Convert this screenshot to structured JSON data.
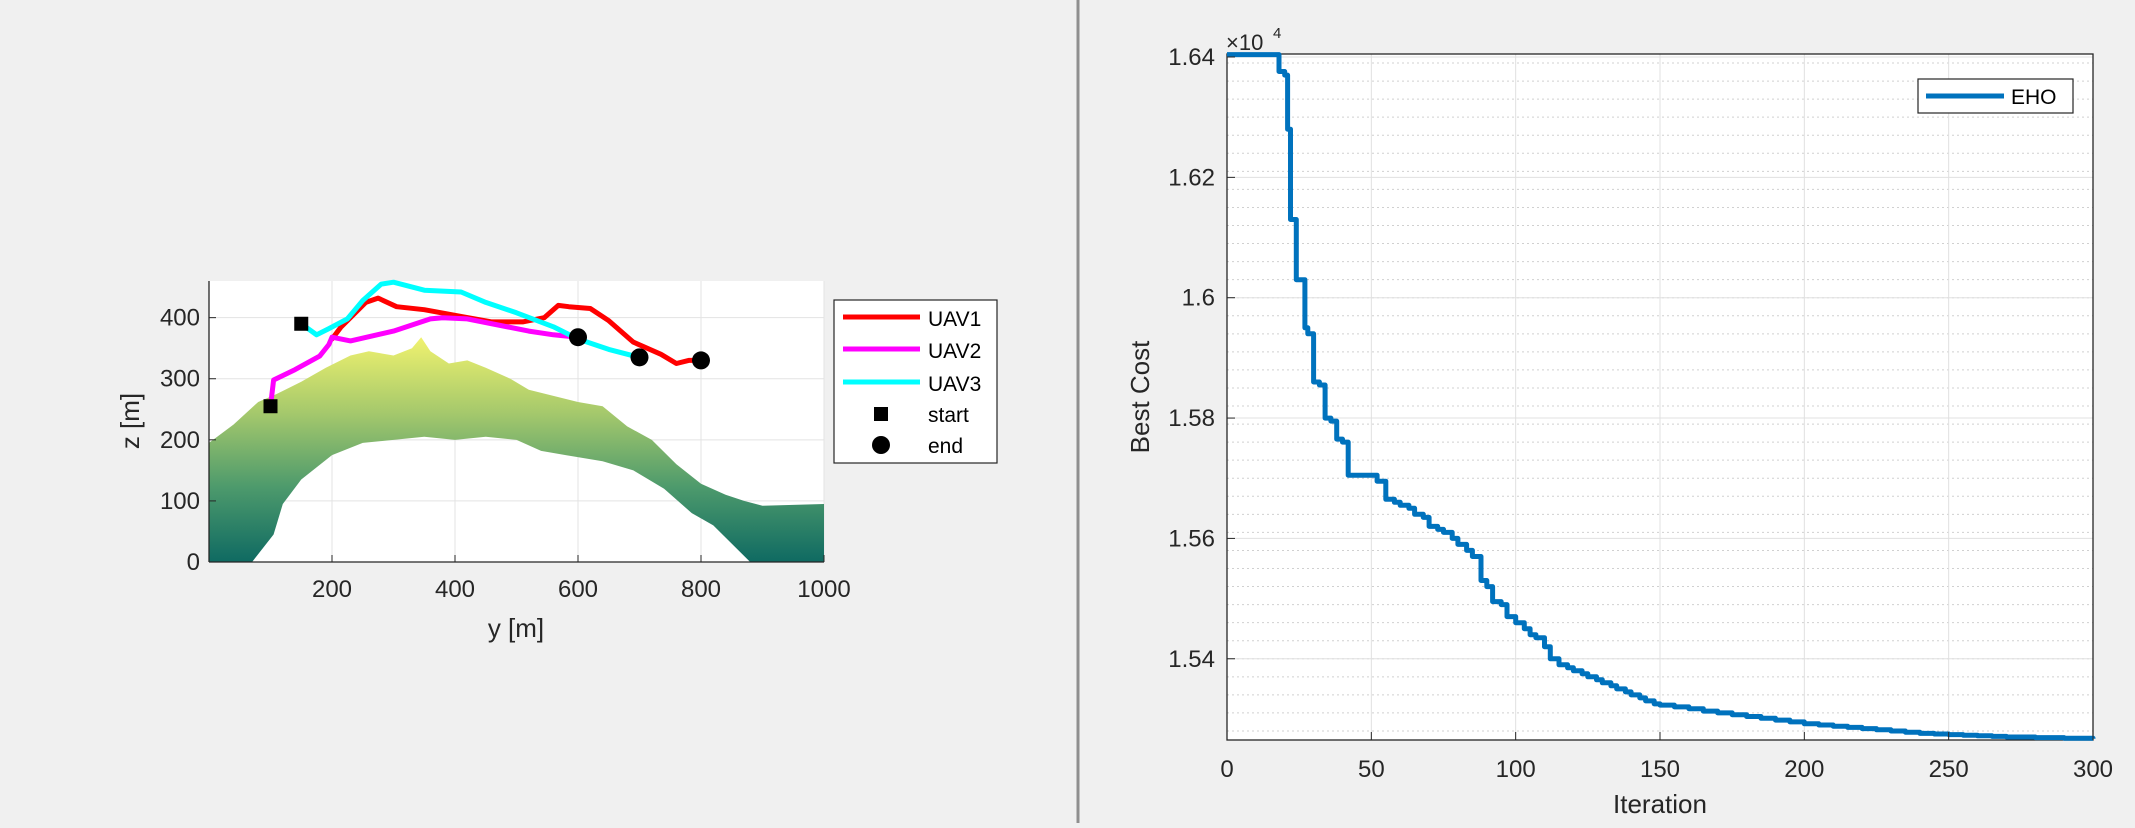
{
  "chart_data": [
    {
      "type": "line",
      "xlabel": "y [m]",
      "ylabel": "z [m]",
      "xlim": [
        0,
        1000
      ],
      "ylim": [
        0,
        460
      ],
      "xticks": [
        200,
        400,
        600,
        800,
        1000
      ],
      "yticks": [
        0,
        100,
        200,
        300,
        400
      ],
      "grid": true,
      "legend_position": "outside-right",
      "legend": [
        "UAV1",
        "UAV2",
        "UAV3",
        "start",
        "end"
      ],
      "series": [
        {
          "name": "UAV1",
          "color": "#ff0000",
          "x": [
            200,
            215,
            235,
            255,
            275,
            305,
            350,
            410,
            460,
            510,
            545,
            568,
            585,
            620,
            650,
            690,
            735,
            760,
            780,
            800
          ],
          "y": [
            365,
            385,
            405,
            425,
            432,
            418,
            413,
            402,
            393,
            393,
            400,
            420,
            418,
            415,
            395,
            360,
            340,
            325,
            330,
            330
          ]
        },
        {
          "name": "UAV2",
          "color": "#ff00ff",
          "x": [
            100,
            105,
            140,
            180,
            195,
            200,
            230,
            300,
            360,
            380,
            420,
            470,
            520,
            560,
            600
          ],
          "y": [
            255,
            298,
            315,
            337,
            356,
            368,
            362,
            378,
            398,
            400,
            398,
            388,
            378,
            372,
            368
          ]
        },
        {
          "name": "UAV3",
          "color": "#00ffff",
          "x": [
            150,
            175,
            195,
            225,
            250,
            280,
            300,
            350,
            410,
            450,
            500,
            560,
            600,
            650,
            700
          ],
          "y": [
            390,
            372,
            382,
            398,
            428,
            455,
            458,
            445,
            442,
            425,
            408,
            385,
            365,
            348,
            335
          ]
        }
      ],
      "start_points": {
        "x": [
          150,
          100
        ],
        "y": [
          390,
          255
        ]
      },
      "end_points": {
        "x": [
          600,
          700,
          800
        ],
        "y": [
          368,
          335,
          330
        ]
      },
      "terrain": {
        "colormap": [
          "#0f6a62",
          "#4d9a6c",
          "#a6c96c",
          "#f0f26e"
        ]
      }
    },
    {
      "type": "line",
      "xlabel": "Iteration",
      "ylabel": "Best Cost",
      "exponent_label": "×10",
      "exponent": "4",
      "xlim": [
        0,
        300
      ],
      "ylim": [
        1.5265,
        1.6405
      ],
      "xticks": [
        "0",
        "50",
        "100",
        "150",
        "200",
        "250",
        "300"
      ],
      "yticks": [
        "1.54",
        "1.56",
        "1.58",
        "1.6",
        "1.62",
        "1.64"
      ],
      "grid": true,
      "minor_grid": true,
      "legend_position": "top-right",
      "series": [
        {
          "name": "EHO",
          "color": "#0072bd",
          "x": [
            0,
            16,
            18,
            20,
            21,
            22,
            24,
            25,
            27,
            28,
            30,
            32,
            34,
            36,
            38,
            40,
            42,
            44,
            45,
            48,
            50,
            52,
            55,
            58,
            60,
            63,
            65,
            68,
            70,
            73,
            75,
            78,
            80,
            83,
            85,
            88,
            90,
            92,
            95,
            97,
            100,
            103,
            105,
            107,
            110,
            112,
            115,
            118,
            120,
            123,
            125,
            128,
            130,
            133,
            135,
            138,
            140,
            143,
            145,
            148,
            150,
            155,
            160,
            165,
            170,
            175,
            180,
            185,
            190,
            195,
            200,
            205,
            210,
            215,
            220,
            225,
            230,
            235,
            240,
            245,
            250,
            255,
            260,
            265,
            270,
            275,
            280,
            285,
            290,
            295,
            300
          ],
          "y": [
            1.6404,
            1.6404,
            1.6376,
            1.637,
            1.628,
            1.613,
            1.603,
            1.603,
            1.595,
            1.594,
            1.586,
            1.5855,
            1.58,
            1.5795,
            1.5765,
            1.576,
            1.5705,
            1.5705,
            1.5705,
            1.5705,
            1.5705,
            1.5695,
            1.5665,
            1.566,
            1.5655,
            1.565,
            1.564,
            1.5635,
            1.562,
            1.5615,
            1.561,
            1.56,
            1.559,
            1.558,
            1.557,
            1.553,
            1.552,
            1.5495,
            1.549,
            1.547,
            1.546,
            1.545,
            1.544,
            1.5435,
            1.542,
            1.54,
            1.539,
            1.5385,
            1.538,
            1.5375,
            1.537,
            1.5365,
            1.536,
            1.5355,
            1.535,
            1.5345,
            1.534,
            1.5335,
            1.533,
            1.5325,
            1.5323,
            1.532,
            1.5317,
            1.5313,
            1.531,
            1.5307,
            1.5304,
            1.5301,
            1.5298,
            1.5295,
            1.5292,
            1.529,
            1.5288,
            1.5286,
            1.5284,
            1.5282,
            1.528,
            1.5278,
            1.5276,
            1.5275,
            1.5274,
            1.5273,
            1.5272,
            1.5271,
            1.527,
            1.527,
            1.5269,
            1.5269,
            1.5268,
            1.5268,
            1.5267
          ]
        }
      ]
    }
  ]
}
